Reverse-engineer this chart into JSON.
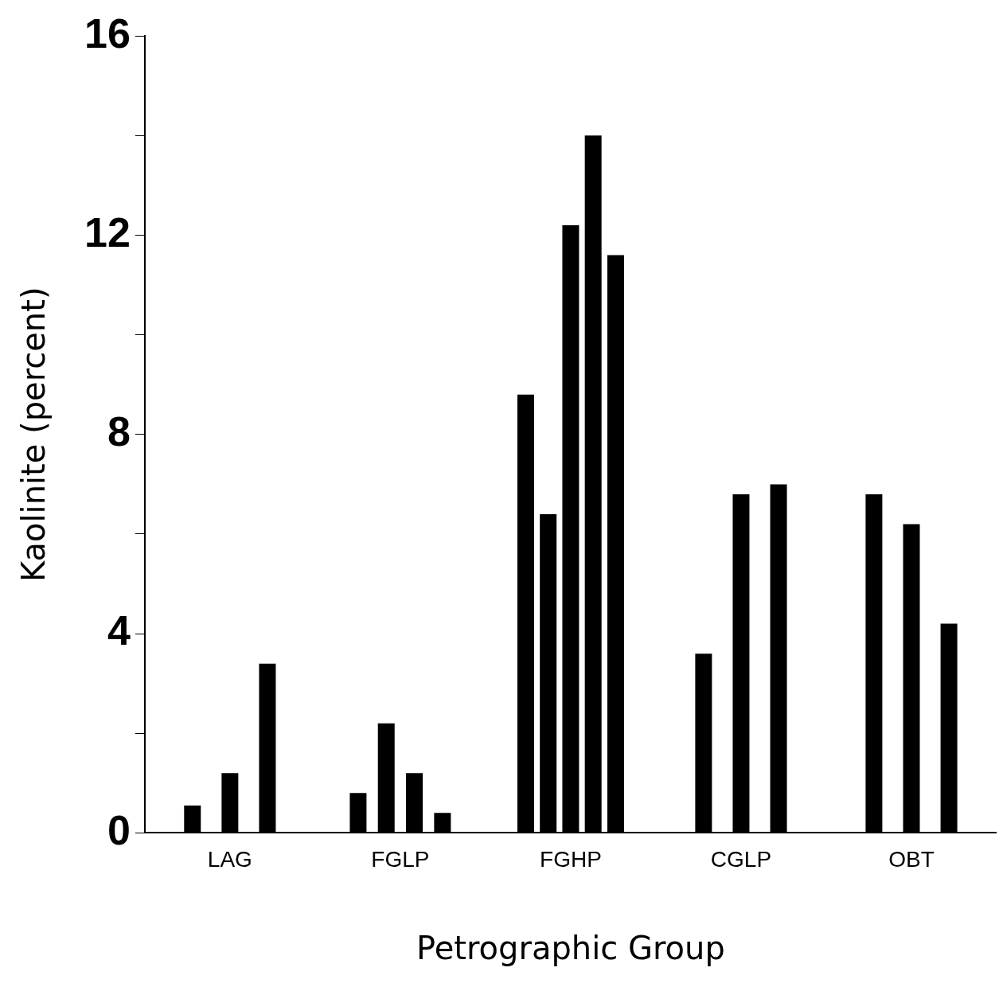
{
  "chart_data": {
    "type": "bar",
    "xlabel": "Petrographic Group",
    "ylabel": "Kaolinite (percent)",
    "categories": [
      "LAG",
      "FGLP",
      "FGHP",
      "CGLP",
      "OBT"
    ],
    "series": [
      {
        "color": "#000000",
        "values": [
          0.55,
          0.8,
          8.8,
          3.6,
          6.8
        ]
      },
      {
        "color": "#000000",
        "values": [
          1.2,
          2.2,
          6.4,
          6.8,
          6.2
        ]
      },
      {
        "color": "#000000",
        "values": [
          3.4,
          1.2,
          12.2,
          7.0,
          4.2
        ]
      },
      {
        "color": "#000000",
        "values": [
          null,
          0.4,
          14,
          null,
          null
        ]
      },
      {
        "color": "#000000",
        "values": [
          null,
          null,
          11.6,
          null,
          null
        ]
      }
    ],
    "ylim": [
      0,
      16
    ],
    "yticks": [
      0,
      {
        "value": 2,
        "label": null
      },
      4,
      {
        "value": 6,
        "label": null
      },
      8,
      {
        "value": 10,
        "label": null
      },
      12,
      {
        "value": 14,
        "label": null
      },
      16
    ],
    "grid": false,
    "legend": false
  }
}
